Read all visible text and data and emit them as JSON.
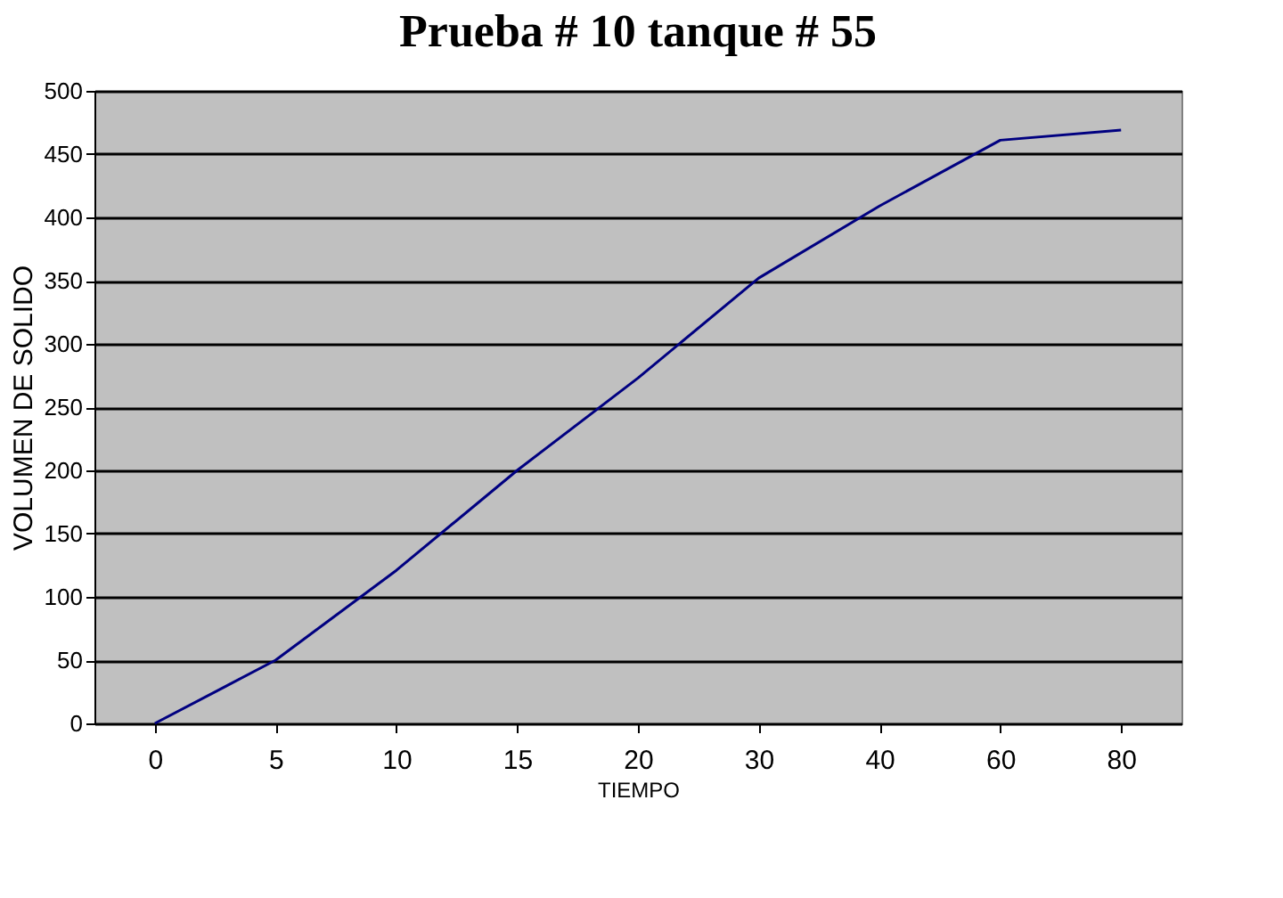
{
  "chart_data": {
    "type": "line",
    "title": "Prueba # 10 tanque # 55",
    "xlabel": "TIEMPO",
    "ylabel": "VOLUMEN DE SOLIDO",
    "categories": [
      "0",
      "5",
      "10",
      "15",
      "20",
      "30",
      "40",
      "60",
      "80"
    ],
    "series": [
      {
        "color": "#000080",
        "values": [
          0,
          50,
          121,
          200,
          273,
          352,
          409,
          461,
          469
        ]
      }
    ],
    "ylim": [
      0,
      500
    ],
    "yticks": [
      0,
      50,
      100,
      150,
      200,
      250,
      300,
      350,
      400,
      450,
      500
    ],
    "grid": "y",
    "legend": false,
    "marker": "none"
  }
}
